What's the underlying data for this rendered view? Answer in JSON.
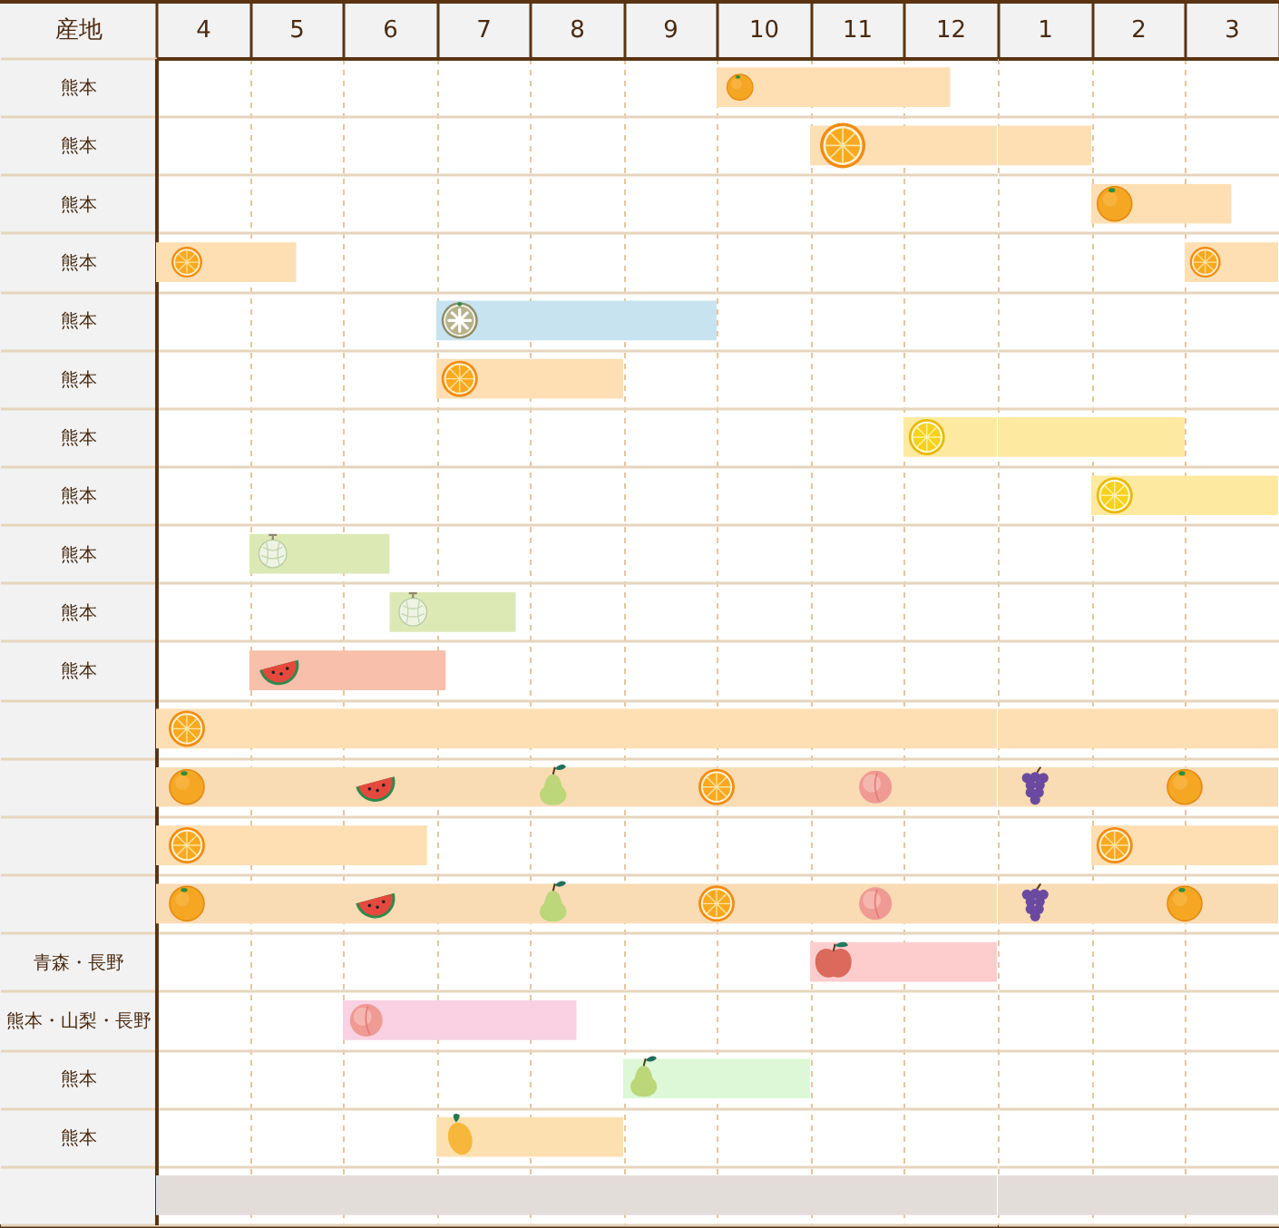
{
  "chart_data": [
    {
      "type": "bar",
      "orientation": "horizontal",
      "ylabel": "産地",
      "categories": [
        "熊本",
        "熊本",
        "熊本",
        "熊本",
        "熊本",
        "熊本",
        "熊本",
        "熊本",
        "熊本",
        "熊本",
        "熊本",
        null,
        null,
        null,
        null,
        "青森・長野",
        "熊本・山梨・長野",
        "熊本",
        "熊本",
        null
      ],
      "xlim": [
        4,
        13
      ],
      "xticks": [
        {
          "value": 4,
          "label": null
        },
        {
          "value": 4.5,
          "label": "4"
        },
        {
          "value": 5,
          "label": null
        },
        {
          "value": 5.5,
          "label": "5"
        },
        {
          "value": 6,
          "label": null
        },
        {
          "value": 6.5,
          "label": "6"
        },
        {
          "value": 7,
          "label": null
        },
        {
          "value": 7.5,
          "label": "7"
        },
        {
          "value": 8,
          "label": null
        },
        {
          "value": 8.5,
          "label": "8"
        },
        {
          "value": 9,
          "label": null
        },
        {
          "value": 9.5,
          "label": "9"
        },
        {
          "value": 10,
          "label": null
        },
        {
          "value": 10.5,
          "label": "10"
        },
        {
          "value": 11,
          "label": null
        },
        {
          "value": 11.5,
          "label": "11"
        },
        {
          "value": 12,
          "label": null
        },
        {
          "value": 12.5,
          "label": "12"
        }
      ],
      "series": [
        {
          "base": [
            10,
            11,
            null,
            4,
            7,
            7,
            12,
            null,
            5,
            6.5,
            5,
            4,
            4,
            4,
            4,
            11,
            6,
            9,
            7,
            4
          ],
          "values": [
            2.5,
            2,
            null,
            1.5,
            3,
            2,
            1,
            null,
            1.5,
            1.35,
            2.1,
            9,
            9,
            2.9,
            9,
            2,
            2.5,
            2,
            2,
            9
          ],
          "colors": [
            "#fddfb3",
            "#fddfb3",
            null,
            "#fddfb3",
            "#c7e3ef",
            "#fddfb3",
            "#fdeaa0",
            null,
            "#dde9b5",
            "#dde9b5",
            "#f8bfaa",
            "#fddfb3",
            "#f9dbb4",
            "#fddfb3",
            "#f9dbb4",
            "#fdcdce",
            "#f9d1e3",
            "#dcf8d6",
            "#fde0b0",
            "#e3ddd9"
          ]
        }
      ],
      "grid": true
    },
    {
      "type": "bar",
      "orientation": "horizontal",
      "categories": [
        null,
        null,
        null,
        null,
        null,
        null,
        null,
        null,
        null,
        null,
        null,
        null,
        null,
        null,
        null,
        null,
        null,
        null,
        null,
        null
      ],
      "xlim": [
        1,
        4
      ],
      "xticks": [
        {
          "value": 1,
          "label": null
        },
        {
          "value": 1.5,
          "label": "1"
        },
        {
          "value": 2,
          "label": null
        },
        {
          "value": 2.5,
          "label": "2"
        },
        {
          "value": 3,
          "label": null
        },
        {
          "value": 3.5,
          "label": "3"
        },
        {
          "value": 4,
          "label": null
        }
      ],
      "series": [
        {
          "base": [
            null,
            1,
            2,
            3,
            null,
            null,
            1,
            2,
            null,
            null,
            null,
            1,
            1,
            2,
            1,
            null,
            null,
            null,
            null,
            1
          ],
          "values": [
            null,
            1,
            1.5,
            1,
            null,
            null,
            2,
            2,
            null,
            null,
            null,
            3,
            3,
            2,
            3,
            null,
            null,
            null,
            null,
            3
          ],
          "colors": [
            null,
            "#fddfb3",
            "#fddfb3",
            "#fddfb3",
            null,
            null,
            "#fdeaa0",
            "#fdeaa0",
            null,
            null,
            null,
            "#fddfb3",
            "#f9dbb4",
            "#fddfb3",
            "#f9dbb4",
            null,
            null,
            null,
            null,
            "#e3ddd9"
          ]
        }
      ],
      "grid": true,
      "tick_labels": "x"
    }
  ]
}
